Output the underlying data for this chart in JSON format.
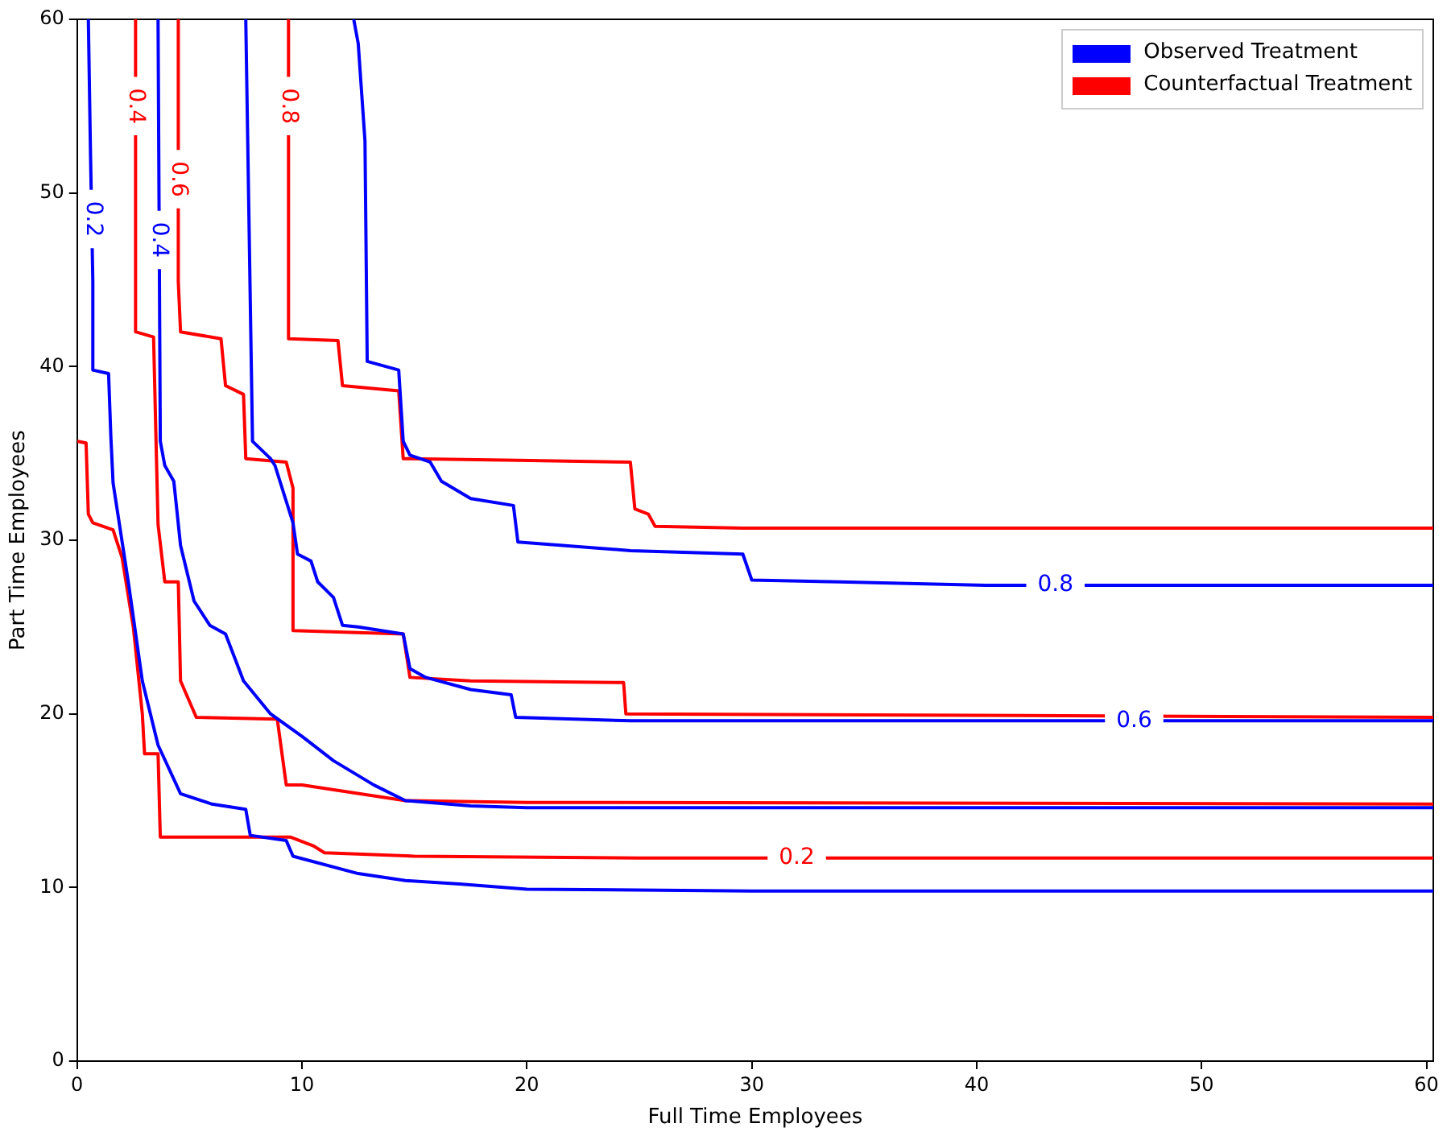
{
  "chart_data": {
    "type": "line",
    "xlabel": "Full Time Employees",
    "ylabel": "Part Time Employees",
    "xlim": [
      0,
      60.3
    ],
    "ylim": [
      0,
      60
    ],
    "xticks": [
      0,
      10,
      20,
      30,
      40,
      50,
      60
    ],
    "yticks": [
      0,
      10,
      20,
      30,
      40,
      50,
      60
    ],
    "grid": false,
    "legend": "top right",
    "marker": "none",
    "line_style": "solid",
    "series": [
      {
        "name": "Observed Treatment",
        "color": "#0000ff",
        "x": [
          0.5,
          0.6,
          0.7,
          0.7,
          1.4,
          1.5,
          1.6,
          2.3,
          2.9,
          3.6,
          4.6,
          6.0,
          7.5,
          7.7,
          9.3,
          9.6,
          12.5,
          14.6,
          17,
          20,
          30,
          60.3
        ],
        "values": [
          60,
          52,
          44.9,
          39.8,
          39.6,
          36,
          33.3,
          27.4,
          21.9,
          18.2,
          15.4,
          14.8,
          14.5,
          13,
          12.7,
          11.8,
          10.8,
          10.4,
          10.2,
          9.9,
          9.8,
          9.8
        ]
      },
      {
        "name": "Counterfactual Treatment",
        "color": "#ff0000",
        "x": [
          0,
          0.4,
          0.5,
          0.7,
          1.6,
          2.0,
          2.5,
          2.9,
          3.0,
          3.6,
          3.7,
          9.5,
          10.5,
          11,
          15,
          25,
          60.3
        ],
        "values": [
          35.7,
          35.6,
          31.5,
          31,
          30.6,
          29,
          25,
          20,
          17.7,
          17.7,
          12.9,
          12.9,
          12.4,
          12,
          11.8,
          11.7,
          11.7
        ]
      },
      {
        "color": "#0000ff",
        "x": [
          3.6,
          3.7,
          3.9,
          4.3,
          4.6,
          5.2,
          5.9,
          6.6,
          7.4,
          8.6,
          10,
          11.4,
          13.2,
          14.6,
          17.5,
          20,
          60.3
        ],
        "values": [
          60,
          35.7,
          34.3,
          33.4,
          29.7,
          26.5,
          25.1,
          24.6,
          21.9,
          20,
          18.7,
          17.3,
          15.9,
          15,
          14.7,
          14.6,
          14.6
        ]
      },
      {
        "color": "#ff0000",
        "x": [
          2.6,
          2.6,
          3.4,
          3.6,
          3.9,
          4.5,
          4.6,
          5.3,
          8.9,
          9.3,
          10,
          14.6,
          20,
          60.3
        ],
        "values": [
          60,
          42,
          41.7,
          30.9,
          27.6,
          27.6,
          21.9,
          19.8,
          19.7,
          15.9,
          15.9,
          15,
          14.9,
          14.8
        ]
      },
      {
        "color": "#0000ff",
        "x": [
          7.5,
          7.8,
          8.2,
          8.6,
          8.8,
          9.6,
          9.8,
          10.4,
          10.7,
          11.4,
          11.8,
          12.5,
          14.5,
          14.8,
          15.5,
          17.5,
          19.3,
          19.5,
          24.6,
          60.3
        ],
        "values": [
          60,
          35.7,
          35.2,
          34.7,
          34.3,
          31,
          29.2,
          28.8,
          27.6,
          26.7,
          25.1,
          25,
          24.6,
          22.6,
          22.1,
          21.4,
          21.1,
          19.8,
          19.6,
          19.6
        ]
      },
      {
        "color": "#ff0000",
        "x": [
          4.5,
          4.5,
          4.6,
          6.4,
          6.6,
          7.4,
          7.5,
          9.3,
          9.6,
          9.6,
          14.5,
          14.8,
          17.5,
          24.3,
          24.4,
          60.3
        ],
        "values": [
          60,
          44.9,
          42,
          41.6,
          38.9,
          38.4,
          34.7,
          34.5,
          33,
          24.8,
          24.6,
          22.1,
          21.9,
          21.8,
          20,
          19.8
        ]
      },
      {
        "color": "#0000ff",
        "x": [
          12.3,
          12.5,
          12.8,
          12.9,
          14.3,
          14.5,
          14.8,
          15.7,
          16.2,
          17.5,
          19.4,
          19.6,
          24.6,
          29.6,
          30,
          33.9,
          40.4,
          60.3
        ],
        "values": [
          60,
          58.6,
          53,
          40.3,
          39.8,
          35.7,
          34.9,
          34.5,
          33.4,
          32.4,
          32,
          29.9,
          29.4,
          29.2,
          27.7,
          27.6,
          27.4,
          27.4
        ]
      },
      {
        "color": "#ff0000",
        "x": [
          9.4,
          9.4,
          11.6,
          11.8,
          14.3,
          14.5,
          19.6,
          24.6,
          24.8,
          25.4,
          25.7,
          29.6,
          60.3
        ],
        "values": [
          60,
          41.6,
          41.5,
          38.9,
          38.6,
          34.7,
          34.6,
          34.5,
          31.8,
          31.5,
          30.8,
          30.7,
          30.7
        ]
      }
    ],
    "annotations": [
      {
        "text": "0.2",
        "x": 0.7,
        "y": 48.5
      },
      {
        "text": "0.4",
        "x": 2.6,
        "y": 55
      },
      {
        "text": "0.4",
        "x": 3.65,
        "y": 47.3
      },
      {
        "text": "0.6",
        "x": 4.5,
        "y": 50.8
      },
      {
        "text": "0.8",
        "x": 9.4,
        "y": 55
      },
      {
        "text": "0.8",
        "x": 43.5,
        "y": 27.4
      },
      {
        "text": "0.6",
        "x": 47,
        "y": 19.6
      },
      {
        "text": "0.2",
        "x": 32,
        "y": 11.7
      }
    ]
  }
}
